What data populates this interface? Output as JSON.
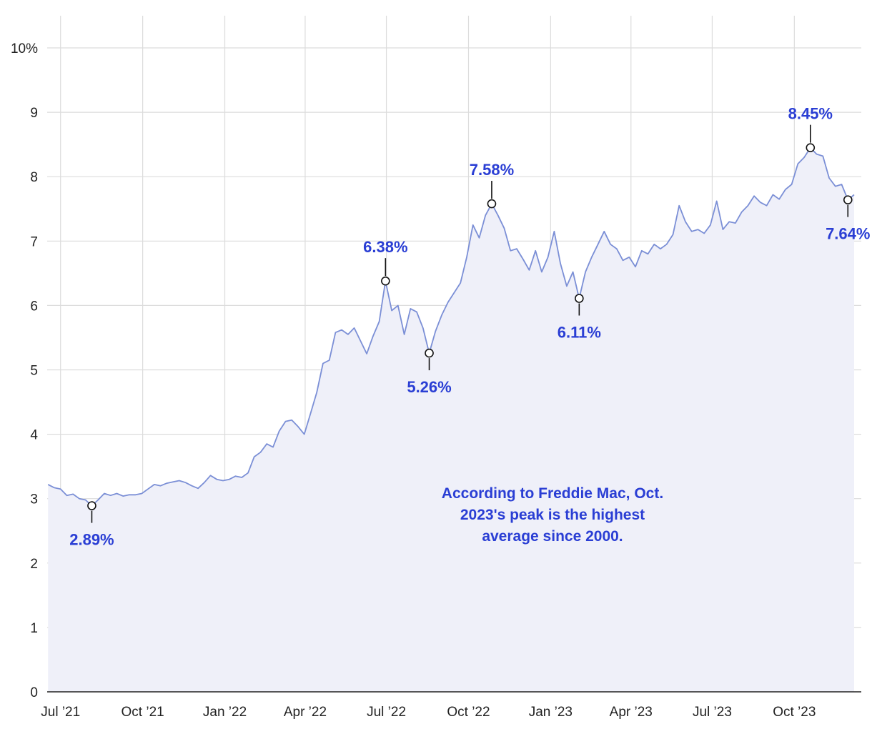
{
  "colors": {
    "line": "#7b8fd6",
    "area": "#eff0f9",
    "label": "#2a3ed4",
    "grid": "#dcdcdc",
    "axis": "#222222",
    "text": "#222222"
  },
  "chart_data": {
    "type": "area",
    "title": "",
    "xlabel": "",
    "ylabel": "",
    "x_range": [
      "2021-06-16",
      "2023-12-15"
    ],
    "ylim": [
      0,
      10
    ],
    "y_ticks": [
      {
        "value": 0,
        "label": "0"
      },
      {
        "value": 1,
        "label": "1"
      },
      {
        "value": 2,
        "label": "2"
      },
      {
        "value": 3,
        "label": "3"
      },
      {
        "value": 4,
        "label": "4"
      },
      {
        "value": 5,
        "label": "5"
      },
      {
        "value": 6,
        "label": "6"
      },
      {
        "value": 7,
        "label": "7"
      },
      {
        "value": 8,
        "label": "8"
      },
      {
        "value": 9,
        "label": "9"
      },
      {
        "value": 10,
        "label": "10%"
      }
    ],
    "x_ticks": [
      {
        "date": "2021-07-01",
        "label": "Jul ’21"
      },
      {
        "date": "2021-10-01",
        "label": "Oct ’21"
      },
      {
        "date": "2022-01-01",
        "label": "Jan ’22"
      },
      {
        "date": "2022-04-01",
        "label": "Apr ’22"
      },
      {
        "date": "2022-07-01",
        "label": "Jul ’22"
      },
      {
        "date": "2022-10-01",
        "label": "Oct ’22"
      },
      {
        "date": "2023-01-01",
        "label": "Jan ’23"
      },
      {
        "date": "2023-04-01",
        "label": "Apr ’23"
      },
      {
        "date": "2023-07-01",
        "label": "Jul ’23"
      },
      {
        "date": "2023-10-01",
        "label": "Oct ’23"
      }
    ],
    "grid": true,
    "series": [
      {
        "points": [
          [
            "2021-06-17",
            3.22
          ],
          [
            "2021-06-24",
            3.17
          ],
          [
            "2021-07-01",
            3.15
          ],
          [
            "2021-07-08",
            3.05
          ],
          [
            "2021-07-15",
            3.07
          ],
          [
            "2021-07-22",
            3.0
          ],
          [
            "2021-07-29",
            2.98
          ],
          [
            "2021-08-05",
            2.89
          ],
          [
            "2021-08-12",
            2.98
          ],
          [
            "2021-08-19",
            3.08
          ],
          [
            "2021-08-26",
            3.05
          ],
          [
            "2021-09-02",
            3.08
          ],
          [
            "2021-09-09",
            3.04
          ],
          [
            "2021-09-16",
            3.06
          ],
          [
            "2021-09-23",
            3.06
          ],
          [
            "2021-09-30",
            3.08
          ],
          [
            "2021-10-07",
            3.15
          ],
          [
            "2021-10-14",
            3.22
          ],
          [
            "2021-10-21",
            3.2
          ],
          [
            "2021-10-28",
            3.24
          ],
          [
            "2021-11-04",
            3.26
          ],
          [
            "2021-11-11",
            3.28
          ],
          [
            "2021-11-18",
            3.25
          ],
          [
            "2021-11-25",
            3.2
          ],
          [
            "2021-12-02",
            3.16
          ],
          [
            "2021-12-09",
            3.25
          ],
          [
            "2021-12-16",
            3.36
          ],
          [
            "2021-12-23",
            3.3
          ],
          [
            "2021-12-30",
            3.28
          ],
          [
            "2022-01-06",
            3.3
          ],
          [
            "2022-01-13",
            3.35
          ],
          [
            "2022-01-20",
            3.33
          ],
          [
            "2022-01-27",
            3.4
          ],
          [
            "2022-02-03",
            3.65
          ],
          [
            "2022-02-10",
            3.72
          ],
          [
            "2022-02-17",
            3.85
          ],
          [
            "2022-02-24",
            3.8
          ],
          [
            "2022-03-03",
            4.05
          ],
          [
            "2022-03-10",
            4.2
          ],
          [
            "2022-03-17",
            4.22
          ],
          [
            "2022-03-24",
            4.12
          ],
          [
            "2022-03-31",
            4.0
          ],
          [
            "2022-04-07",
            4.32
          ],
          [
            "2022-04-14",
            4.65
          ],
          [
            "2022-04-21",
            5.1
          ],
          [
            "2022-04-28",
            5.15
          ],
          [
            "2022-05-05",
            5.58
          ],
          [
            "2022-05-12",
            5.62
          ],
          [
            "2022-05-19",
            5.55
          ],
          [
            "2022-05-26",
            5.65
          ],
          [
            "2022-06-02",
            5.45
          ],
          [
            "2022-06-09",
            5.25
          ],
          [
            "2022-06-16",
            5.52
          ],
          [
            "2022-06-23",
            5.75
          ],
          [
            "2022-06-30",
            6.38
          ],
          [
            "2022-07-07",
            5.92
          ],
          [
            "2022-07-14",
            6.0
          ],
          [
            "2022-07-21",
            5.55
          ],
          [
            "2022-07-28",
            5.95
          ],
          [
            "2022-08-04",
            5.9
          ],
          [
            "2022-08-11",
            5.65
          ],
          [
            "2022-08-18",
            5.26
          ],
          [
            "2022-08-25",
            5.6
          ],
          [
            "2022-09-01",
            5.85
          ],
          [
            "2022-09-08",
            6.05
          ],
          [
            "2022-09-15",
            6.2
          ],
          [
            "2022-09-22",
            6.35
          ],
          [
            "2022-09-29",
            6.75
          ],
          [
            "2022-10-06",
            7.25
          ],
          [
            "2022-10-13",
            7.05
          ],
          [
            "2022-10-20",
            7.4
          ],
          [
            "2022-10-27",
            7.58
          ],
          [
            "2022-11-03",
            7.4
          ],
          [
            "2022-11-10",
            7.2
          ],
          [
            "2022-11-17",
            6.85
          ],
          [
            "2022-11-24",
            6.88
          ],
          [
            "2022-12-01",
            6.72
          ],
          [
            "2022-12-08",
            6.55
          ],
          [
            "2022-12-15",
            6.85
          ],
          [
            "2022-12-22",
            6.52
          ],
          [
            "2022-12-29",
            6.75
          ],
          [
            "2023-01-05",
            7.15
          ],
          [
            "2023-01-12",
            6.65
          ],
          [
            "2023-01-19",
            6.3
          ],
          [
            "2023-01-26",
            6.52
          ],
          [
            "2023-02-02",
            6.11
          ],
          [
            "2023-02-09",
            6.52
          ],
          [
            "2023-02-16",
            6.75
          ],
          [
            "2023-02-23",
            6.95
          ],
          [
            "2023-03-02",
            7.15
          ],
          [
            "2023-03-09",
            6.95
          ],
          [
            "2023-03-16",
            6.88
          ],
          [
            "2023-03-23",
            6.7
          ],
          [
            "2023-03-30",
            6.75
          ],
          [
            "2023-04-06",
            6.6
          ],
          [
            "2023-04-13",
            6.85
          ],
          [
            "2023-04-20",
            6.8
          ],
          [
            "2023-04-27",
            6.95
          ],
          [
            "2023-05-04",
            6.88
          ],
          [
            "2023-05-11",
            6.95
          ],
          [
            "2023-05-18",
            7.1
          ],
          [
            "2023-05-25",
            7.55
          ],
          [
            "2023-06-01",
            7.3
          ],
          [
            "2023-06-08",
            7.15
          ],
          [
            "2023-06-15",
            7.18
          ],
          [
            "2023-06-22",
            7.12
          ],
          [
            "2023-06-29",
            7.25
          ],
          [
            "2023-07-06",
            7.62
          ],
          [
            "2023-07-13",
            7.18
          ],
          [
            "2023-07-20",
            7.3
          ],
          [
            "2023-07-27",
            7.28
          ],
          [
            "2023-08-03",
            7.45
          ],
          [
            "2023-08-10",
            7.55
          ],
          [
            "2023-08-17",
            7.7
          ],
          [
            "2023-08-24",
            7.6
          ],
          [
            "2023-08-31",
            7.55
          ],
          [
            "2023-09-07",
            7.72
          ],
          [
            "2023-09-14",
            7.65
          ],
          [
            "2023-09-21",
            7.8
          ],
          [
            "2023-09-28",
            7.88
          ],
          [
            "2023-10-05",
            8.2
          ],
          [
            "2023-10-12",
            8.3
          ],
          [
            "2023-10-19",
            8.45
          ],
          [
            "2023-10-26",
            8.35
          ],
          [
            "2023-11-02",
            8.32
          ],
          [
            "2023-11-09",
            7.98
          ],
          [
            "2023-11-16",
            7.85
          ],
          [
            "2023-11-23",
            7.88
          ],
          [
            "2023-11-30",
            7.64
          ],
          [
            "2023-12-07",
            7.72
          ]
        ]
      }
    ],
    "callouts": [
      {
        "date": "2021-08-05",
        "value": 2.89,
        "label": "2.89%",
        "position": "below"
      },
      {
        "date": "2022-06-30",
        "value": 6.38,
        "label": "6.38%",
        "position": "above"
      },
      {
        "date": "2022-08-18",
        "value": 5.26,
        "label": "5.26%",
        "position": "below"
      },
      {
        "date": "2022-10-27",
        "value": 7.58,
        "label": "7.58%",
        "position": "above"
      },
      {
        "date": "2023-02-02",
        "value": 6.11,
        "label": "6.11%",
        "position": "below"
      },
      {
        "date": "2023-10-19",
        "value": 8.45,
        "label": "8.45%",
        "position": "above"
      },
      {
        "date": "2023-11-30",
        "value": 7.64,
        "label": "7.64%",
        "position": "below"
      }
    ],
    "annotation": {
      "lines": [
        "According to Freddie Mac, Oct.",
        "2023's peak is the highest",
        "average since 2000."
      ]
    }
  }
}
